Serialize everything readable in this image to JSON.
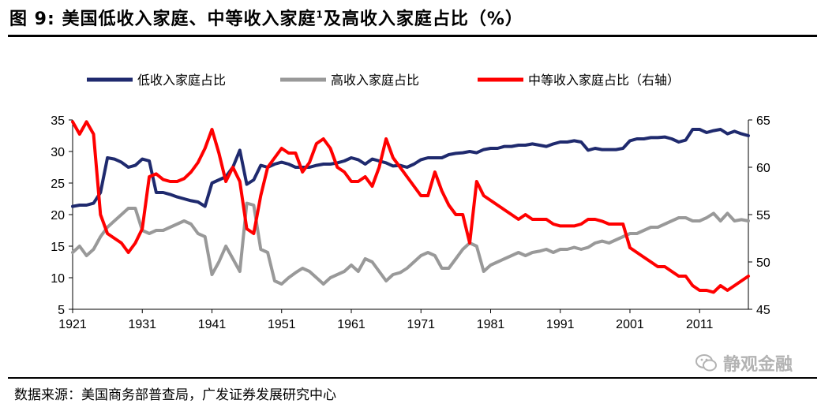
{
  "figure": {
    "title_prefix": "图 9:",
    "title_main": "美国低收入家庭、中等收入家庭",
    "title_sup": "1",
    "title_rest": "及高收入家庭占比（%）",
    "source": "数据来源：美国商务部普查局，广发证券发展研究中心",
    "watermark": "静观金融"
  },
  "chart_data": {
    "type": "line",
    "x_ticks": [
      "1921",
      "1931",
      "1941",
      "1951",
      "1961",
      "1971",
      "1981",
      "1991",
      "2001",
      "2011"
    ],
    "xlim": [
      1921,
      2018
    ],
    "ylim_left": [
      5,
      35
    ],
    "ylim_right": [
      45,
      65
    ],
    "y_ticks_left": [
      "5",
      "10",
      "15",
      "20",
      "25",
      "30",
      "35"
    ],
    "y_ticks_right": [
      "45",
      "50",
      "55",
      "60",
      "65"
    ],
    "grid": false,
    "legend_position": "top",
    "series": [
      {
        "name": "低收入家庭占比",
        "axis": "left",
        "color": "#1f2a6e",
        "x": [
          1921,
          1922,
          1923,
          1924,
          1925,
          1926,
          1927,
          1928,
          1929,
          1930,
          1931,
          1932,
          1933,
          1934,
          1935,
          1936,
          1937,
          1938,
          1939,
          1940,
          1941,
          1942,
          1943,
          1944,
          1945,
          1946,
          1947,
          1948,
          1949,
          1950,
          1951,
          1952,
          1953,
          1954,
          1955,
          1956,
          1957,
          1958,
          1959,
          1960,
          1961,
          1962,
          1963,
          1964,
          1965,
          1966,
          1967,
          1968,
          1969,
          1970,
          1971,
          1972,
          1973,
          1974,
          1975,
          1976,
          1977,
          1978,
          1979,
          1980,
          1981,
          1982,
          1983,
          1984,
          1985,
          1986,
          1987,
          1988,
          1989,
          1990,
          1991,
          1992,
          1993,
          1994,
          1995,
          1996,
          1997,
          1998,
          1999,
          2000,
          2001,
          2002,
          2003,
          2004,
          2005,
          2006,
          2007,
          2008,
          2009,
          2010,
          2011,
          2012,
          2013,
          2014,
          2015,
          2016,
          2017,
          2018
        ],
        "values": [
          21.3,
          21.5,
          21.5,
          21.8,
          23.5,
          29.0,
          28.8,
          28.3,
          27.5,
          27.8,
          28.8,
          28.5,
          23.5,
          23.5,
          23.2,
          22.8,
          22.5,
          22.2,
          22.0,
          21.3,
          25.0,
          25.5,
          26.0,
          27.5,
          30.2,
          24.8,
          25.5,
          27.8,
          27.5,
          28.0,
          28.3,
          28.0,
          27.5,
          27.5,
          27.5,
          27.8,
          28.0,
          28.0,
          28.2,
          28.5,
          29.0,
          28.7,
          28.0,
          28.8,
          28.5,
          28.2,
          27.7,
          27.8,
          27.5,
          28.0,
          28.7,
          29.0,
          29.0,
          29.0,
          29.5,
          29.7,
          29.8,
          30.0,
          29.8,
          30.3,
          30.5,
          30.5,
          30.8,
          30.8,
          31.0,
          31.0,
          31.2,
          31.0,
          30.8,
          31.2,
          31.5,
          31.5,
          31.7,
          31.5,
          30.2,
          30.5,
          30.3,
          30.3,
          30.3,
          30.5,
          31.7,
          32.0,
          32.0,
          32.2,
          32.2,
          32.3,
          32.0,
          31.5,
          31.8,
          33.5,
          33.5,
          33.0,
          33.3,
          33.5,
          32.8,
          33.2,
          32.8,
          32.5
        ]
      },
      {
        "name": "高收入家庭占比",
        "axis": "left",
        "color": "#999999",
        "x": [
          1921,
          1922,
          1923,
          1924,
          1925,
          1926,
          1927,
          1928,
          1929,
          1930,
          1931,
          1932,
          1933,
          1934,
          1935,
          1936,
          1937,
          1938,
          1939,
          1940,
          1941,
          1942,
          1943,
          1944,
          1945,
          1946,
          1947,
          1948,
          1949,
          1950,
          1951,
          1952,
          1953,
          1954,
          1955,
          1956,
          1957,
          1958,
          1959,
          1960,
          1961,
          1962,
          1963,
          1964,
          1965,
          1966,
          1967,
          1968,
          1969,
          1970,
          1971,
          1972,
          1973,
          1974,
          1975,
          1976,
          1977,
          1978,
          1979,
          1980,
          1981,
          1982,
          1983,
          1984,
          1985,
          1986,
          1987,
          1988,
          1989,
          1990,
          1991,
          1992,
          1993,
          1994,
          1995,
          1996,
          1997,
          1998,
          1999,
          2000,
          2001,
          2002,
          2003,
          2004,
          2005,
          2006,
          2007,
          2008,
          2009,
          2010,
          2011,
          2012,
          2013,
          2014,
          2015,
          2016,
          2017,
          2018
        ],
        "values": [
          14.0,
          15.0,
          13.5,
          14.5,
          16.5,
          18.0,
          19.0,
          20.0,
          21.0,
          21.0,
          17.5,
          17.0,
          17.5,
          17.5,
          18.0,
          18.5,
          19.0,
          18.5,
          17.0,
          16.5,
          10.5,
          12.5,
          15.0,
          13.0,
          11.0,
          21.8,
          21.5,
          14.5,
          14.0,
          9.5,
          9.0,
          10.0,
          10.8,
          11.5,
          11.0,
          10.0,
          9.0,
          10.0,
          10.5,
          11.0,
          12.0,
          11.0,
          13.0,
          12.5,
          11.0,
          9.5,
          10.5,
          10.8,
          11.5,
          12.5,
          13.5,
          14.0,
          13.5,
          11.5,
          11.5,
          13.0,
          14.5,
          15.5,
          15.0,
          11.0,
          12.0,
          12.5,
          13.0,
          13.5,
          14.0,
          13.5,
          14.0,
          14.2,
          14.5,
          14.0,
          14.5,
          14.5,
          14.8,
          14.5,
          14.8,
          15.5,
          15.8,
          15.5,
          16.0,
          16.5,
          17.0,
          17.0,
          17.5,
          18.0,
          18.0,
          18.5,
          19.0,
          19.5,
          19.5,
          19.0,
          19.0,
          19.5,
          20.2,
          19.0,
          20.2,
          19.0,
          19.2,
          19.0
        ]
      },
      {
        "name": "中等收入家庭占比（右轴）",
        "axis": "right",
        "color": "#ff0000",
        "x": [
          1921,
          1922,
          1923,
          1924,
          1925,
          1926,
          1927,
          1928,
          1929,
          1930,
          1931,
          1932,
          1933,
          1934,
          1935,
          1936,
          1937,
          1938,
          1939,
          1940,
          1941,
          1942,
          1943,
          1944,
          1945,
          1946,
          1947,
          1948,
          1949,
          1950,
          1951,
          1952,
          1953,
          1954,
          1955,
          1956,
          1957,
          1958,
          1959,
          1960,
          1961,
          1962,
          1963,
          1964,
          1965,
          1966,
          1967,
          1968,
          1969,
          1970,
          1971,
          1972,
          1973,
          1974,
          1975,
          1976,
          1977,
          1978,
          1979,
          1980,
          1981,
          1982,
          1983,
          1984,
          1985,
          1986,
          1987,
          1988,
          1989,
          1990,
          1991,
          1992,
          1993,
          1994,
          1995,
          1996,
          1997,
          1998,
          1999,
          2000,
          2001,
          2002,
          2003,
          2004,
          2005,
          2006,
          2007,
          2008,
          2009,
          2010,
          2011,
          2012,
          2013,
          2014,
          2015,
          2016,
          2017,
          2018
        ],
        "values": [
          64.8,
          63.5,
          64.8,
          63.5,
          55.0,
          53.0,
          52.5,
          52.0,
          51.0,
          52.0,
          53.5,
          59.0,
          59.3,
          58.7,
          58.5,
          58.5,
          58.8,
          59.5,
          60.5,
          62.0,
          64.0,
          61.5,
          58.5,
          60.0,
          58.5,
          53.5,
          53.0,
          57.0,
          60.0,
          61.0,
          62.0,
          61.5,
          61.5,
          59.5,
          60.5,
          62.5,
          63.0,
          62.0,
          60.0,
          59.5,
          58.5,
          58.5,
          59.0,
          58.0,
          60.0,
          63.0,
          61.0,
          60.0,
          59.0,
          58.0,
          57.0,
          57.0,
          59.5,
          57.5,
          56.0,
          55.0,
          55.0,
          52.0,
          58.5,
          57.0,
          56.5,
          56.0,
          55.5,
          55.0,
          54.5,
          55.0,
          54.5,
          54.5,
          54.5,
          54.0,
          53.8,
          53.8,
          53.8,
          54.0,
          54.5,
          54.5,
          54.3,
          54.0,
          54.0,
          54.0,
          51.5,
          51.0,
          50.5,
          50.0,
          49.5,
          49.5,
          49.0,
          48.5,
          48.5,
          47.5,
          47.0,
          47.0,
          46.8,
          47.5,
          47.0,
          47.5,
          48.0,
          48.5
        ]
      }
    ]
  }
}
